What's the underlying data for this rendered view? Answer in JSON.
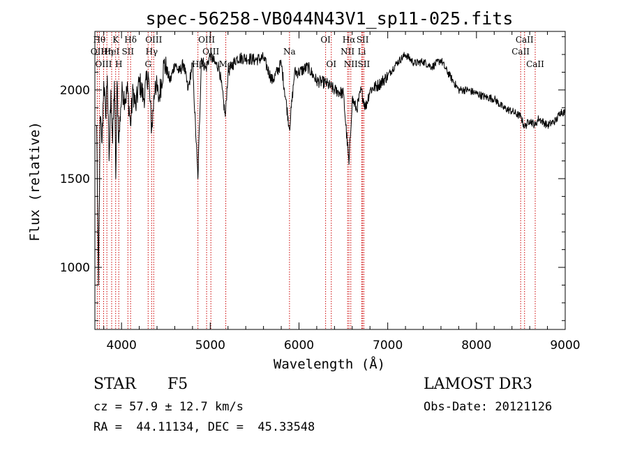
{
  "chart_data": {
    "type": "line",
    "title": "spec-56258-VB044N43V1_sp11-025.fits",
    "xlabel": "Wavelength (Å)",
    "ylabel": "Flux (relative)",
    "xlim": [
      3700,
      9000
    ],
    "ylim": [
      650,
      2330
    ],
    "xticks": [
      4000,
      5000,
      6000,
      7000,
      8000,
      9000
    ],
    "yticks": [
      1000,
      1500,
      2000
    ],
    "x_minor_step": 200,
    "y_minor_step": 100,
    "grid": false,
    "line_color": "#000000",
    "marker_color": "#cc0000",
    "series": [
      {
        "name": "flux",
        "x": [
          3720,
          3740,
          3760,
          3780,
          3800,
          3820,
          3840,
          3860,
          3880,
          3900,
          3920,
          3935,
          3950,
          3970,
          3990,
          4010,
          4040,
          4070,
          4101,
          4130,
          4160,
          4200,
          4250,
          4300,
          4340,
          4380,
          4420,
          4480,
          4550,
          4600,
          4650,
          4700,
          4750,
          4800,
          4861,
          4900,
          4950,
          5000,
          5050,
          5100,
          5170,
          5200,
          5300,
          5400,
          5500,
          5600,
          5700,
          5800,
          5893,
          5950,
          6000,
          6100,
          6200,
          6300,
          6400,
          6500,
          6563,
          6600,
          6650,
          6700,
          6750,
          6800,
          6900,
          7000,
          7100,
          7200,
          7300,
          7400,
          7500,
          7600,
          7650,
          7700,
          7800,
          7900,
          8000,
          8100,
          8200,
          8300,
          8400,
          8500,
          8542,
          8600,
          8662,
          8700,
          8800,
          8900,
          8950,
          9000
        ],
        "y": [
          1800,
          900,
          1850,
          1700,
          2050,
          1850,
          2080,
          1600,
          2000,
          1700,
          2050,
          1500,
          2050,
          1700,
          1900,
          2000,
          1950,
          2000,
          1800,
          2000,
          1900,
          2050,
          1950,
          2100,
          1780,
          2050,
          1950,
          2150,
          2050,
          2150,
          2100,
          2150,
          2000,
          2150,
          1500,
          2180,
          2120,
          2200,
          2150,
          2130,
          1850,
          2100,
          2180,
          2180,
          2170,
          2180,
          2050,
          2150,
          1780,
          2100,
          2100,
          2130,
          2050,
          2040,
          2000,
          1980,
          1580,
          1950,
          1890,
          2000,
          1900,
          2000,
          2030,
          2080,
          2150,
          2200,
          2150,
          2160,
          2130,
          2170,
          2120,
          2080,
          2000,
          2000,
          1980,
          1960,
          1950,
          1900,
          1880,
          1850,
          1790,
          1830,
          1800,
          1840,
          1800,
          1830,
          1880,
          1870
        ]
      }
    ],
    "line_markers": [
      {
        "x": 3727,
        "label": "OII",
        "row": 2
      },
      {
        "x": 3750,
        "label": "Hθ",
        "row": 1
      },
      {
        "x": 3798,
        "label": "OIII",
        "row": 3
      },
      {
        "x": 3835,
        "label": "Hη",
        "row": 2
      },
      {
        "x": 3889,
        "label": "HeI",
        "row": 2
      },
      {
        "x": 3934,
        "label": "K",
        "row": 1
      },
      {
        "x": 3969,
        "label": "H",
        "row": 3
      },
      {
        "x": 4072,
        "label": "SII",
        "row": 2
      },
      {
        "x": 4102,
        "label": "Hδ",
        "row": 1
      },
      {
        "x": 4300,
        "label": "G",
        "row": 3
      },
      {
        "x": 4340,
        "label": "Hγ",
        "row": 2
      },
      {
        "x": 4363,
        "label": "OIII",
        "row": 1
      },
      {
        "x": 4861,
        "label": "Hβ",
        "row": 3
      },
      {
        "x": 4959,
        "label": "OIII",
        "row": 1
      },
      {
        "x": 5007,
        "label": "OIII",
        "row": 2
      },
      {
        "x": 5175,
        "label": "Mg",
        "row": 3
      },
      {
        "x": 5893,
        "label": "Na",
        "row": 2
      },
      {
        "x": 6300,
        "label": "OI",
        "row": 1
      },
      {
        "x": 6364,
        "label": "OI",
        "row": 3
      },
      {
        "x": 6548,
        "label": "NII",
        "row": 2
      },
      {
        "x": 6563,
        "label": "Hα",
        "row": 1
      },
      {
        "x": 6584,
        "label": "NII",
        "row": 3
      },
      {
        "x": 6708,
        "label": "Li",
        "row": 2
      },
      {
        "x": 6717,
        "label": "SII",
        "row": 1
      },
      {
        "x": 6731,
        "label": "SII",
        "row": 3
      },
      {
        "x": 8498,
        "label": "CaII",
        "row": 2
      },
      {
        "x": 8542,
        "label": "CaII",
        "row": 1
      },
      {
        "x": 8662,
        "label": "CaII",
        "row": 3
      }
    ]
  },
  "info": {
    "class": "STAR",
    "subclass": "F5",
    "cz": "cz = 57.9 ± 12.7 km/s",
    "coords": "RA =  44.11134, DEC =  45.33548",
    "survey": "LAMOST DR3",
    "obs_date": "Obs-Date: 20121126"
  }
}
